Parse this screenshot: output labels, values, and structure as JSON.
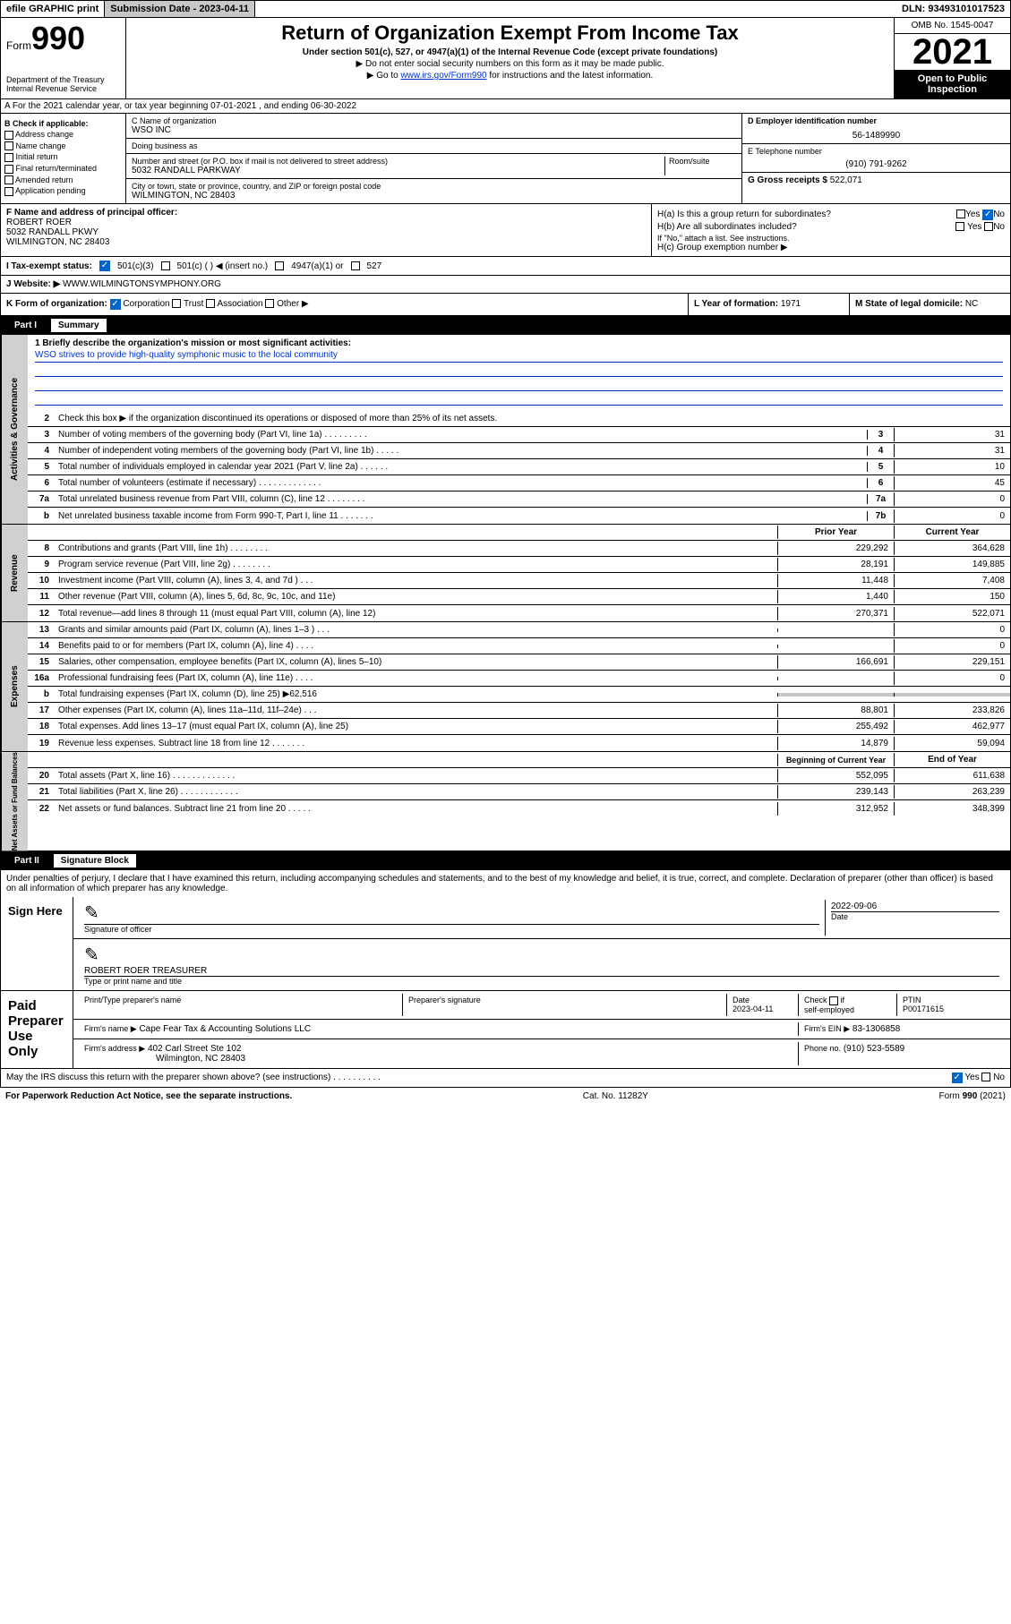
{
  "topbar": {
    "efile": "efile GRAPHIC print",
    "submission_label": "Submission Date - 2023-04-11",
    "dln": "DLN: 93493101017523"
  },
  "header": {
    "form_prefix": "Form",
    "form_num": "990",
    "title": "Return of Organization Exempt From Income Tax",
    "subtitle": "Under section 501(c), 527, or 4947(a)(1) of the Internal Revenue Code (except private foundations)",
    "note1": "▶ Do not enter social security numbers on this form as it may be made public.",
    "note2_prefix": "▶ Go to ",
    "note2_link": "www.irs.gov/Form990",
    "note2_suffix": " for instructions and the latest information.",
    "omb": "OMB No. 1545-0047",
    "year": "2021",
    "open_public": "Open to Public Inspection",
    "dept": "Department of the Treasury\nInternal Revenue Service"
  },
  "row_a": {
    "text": "A For the 2021 calendar year, or tax year beginning 07-01-2021   , and ending 06-30-2022"
  },
  "col_b": {
    "header": "B Check if applicable:",
    "items": [
      "Address change",
      "Name change",
      "Initial return",
      "Final return/terminated",
      "Amended return",
      "Application pending"
    ]
  },
  "col_c": {
    "name_label": "C Name of organization",
    "name": "WSO INC",
    "dba_label": "Doing business as",
    "dba": "",
    "addr_label": "Number and street (or P.O. box if mail is not delivered to street address)",
    "room_label": "Room/suite",
    "addr": "5032 RANDALL PARKWAY",
    "city_label": "City or town, state or province, country, and ZIP or foreign postal code",
    "city": "WILMINGTON, NC  28403"
  },
  "col_de": {
    "ein_label": "D Employer identification number",
    "ein": "56-1489990",
    "phone_label": "E Telephone number",
    "phone": "(910) 791-9262",
    "gross_label": "G Gross receipts $",
    "gross": "522,071"
  },
  "col_f": {
    "label": "F  Name and address of principal officer:",
    "name": "ROBERT ROER",
    "addr1": "5032 RANDALL PKWY",
    "addr2": "WILMINGTON, NC  28403"
  },
  "col_h": {
    "ha_label": "H(a)  Is this a group return for subordinates?",
    "ha_yes": "Yes",
    "ha_no": "No",
    "hb_label": "H(b)  Are all subordinates included?",
    "hb_yes": "Yes",
    "hb_no": "No",
    "hb_note": "If \"No,\" attach a list. See instructions.",
    "hc_label": "H(c)  Group exemption number ▶"
  },
  "row_i": {
    "label": "I   Tax-exempt status:",
    "opt1": "501(c)(3)",
    "opt2": "501(c) (  ) ◀ (insert no.)",
    "opt3": "4947(a)(1) or",
    "opt4": "527"
  },
  "row_j": {
    "label": "J   Website: ▶",
    "value": "WWW.WILMINGTONSYMPHONY.ORG"
  },
  "row_klm": {
    "k_label": "K Form of organization:",
    "k_corp": "Corporation",
    "k_trust": "Trust",
    "k_assoc": "Association",
    "k_other": "Other ▶",
    "l_label": "L Year of formation:",
    "l_value": "1971",
    "m_label": "M State of legal domicile:",
    "m_value": "NC"
  },
  "part1": {
    "num": "Part I",
    "title": "Summary"
  },
  "mission": {
    "label": "1  Briefly describe the organization's mission or most significant activities:",
    "text": "WSO strives to provide high-quality symphonic music to the local community"
  },
  "governance": {
    "side": "Activities & Governance",
    "line2": "Check this box ▶      if the organization discontinued its operations or disposed of more than 25% of its net assets.",
    "rows": [
      {
        "n": "3",
        "t": "Number of voting members of the governing body (Part VI, line 1a)  .    .    .    .    .    .    .    .    .",
        "c": "3",
        "v": "31"
      },
      {
        "n": "4",
        "t": "Number of independent voting members of the governing body (Part VI, line 1b)   .    .    .    .    .",
        "c": "4",
        "v": "31"
      },
      {
        "n": "5",
        "t": "Total number of individuals employed in calendar year 2021 (Part V, line 2a)  .    .    .    .    .    .",
        "c": "5",
        "v": "10"
      },
      {
        "n": "6",
        "t": "Total number of volunteers (estimate if necessary)   .    .    .    .    .    .    .    .    .    .    .    .    .",
        "c": "6",
        "v": "45"
      },
      {
        "n": "7a",
        "t": "Total unrelated business revenue from Part VIII, column (C), line 12   .    .    .    .    .    .    .    .",
        "c": "7a",
        "v": "0"
      },
      {
        "n": "b",
        "t": "Net unrelated business taxable income from Form 990-T, Part I, line 11   .    .    .    .    .    .    .",
        "c": "7b",
        "v": "0"
      }
    ]
  },
  "revenue": {
    "side": "Revenue",
    "header_prior": "Prior Year",
    "header_current": "Current Year",
    "rows": [
      {
        "n": "8",
        "t": "Contributions and grants (Part VIII, line 1h)   .    .    .    .    .    .    .    .",
        "p": "229,292",
        "c": "364,628"
      },
      {
        "n": "9",
        "t": "Program service revenue (Part VIII, line 2g)   .    .    .    .    .    .    .    .",
        "p": "28,191",
        "c": "149,885"
      },
      {
        "n": "10",
        "t": "Investment income (Part VIII, column (A), lines 3, 4, and 7d )   .    .    .",
        "p": "11,448",
        "c": "7,408"
      },
      {
        "n": "11",
        "t": "Other revenue (Part VIII, column (A), lines 5, 6d, 8c, 9c, 10c, and 11e)",
        "p": "1,440",
        "c": "150"
      },
      {
        "n": "12",
        "t": "Total revenue—add lines 8 through 11 (must equal Part VIII, column (A), line 12)",
        "p": "270,371",
        "c": "522,071"
      }
    ]
  },
  "expenses": {
    "side": "Expenses",
    "rows": [
      {
        "n": "13",
        "t": "Grants and similar amounts paid (Part IX, column (A), lines 1–3 )   .    .    .",
        "p": "",
        "c": "0"
      },
      {
        "n": "14",
        "t": "Benefits paid to or for members (Part IX, column (A), line 4)   .    .    .    .",
        "p": "",
        "c": "0"
      },
      {
        "n": "15",
        "t": "Salaries, other compensation, employee benefits (Part IX, column (A), lines 5–10)",
        "p": "166,691",
        "c": "229,151"
      },
      {
        "n": "16a",
        "t": "Professional fundraising fees (Part IX, column (A), line 11e)   .    .    .    .",
        "p": "",
        "c": "0"
      },
      {
        "n": "b",
        "t": "Total fundraising expenses (Part IX, column (D), line 25) ▶62,516",
        "p": "gray",
        "c": "gray"
      },
      {
        "n": "17",
        "t": "Other expenses (Part IX, column (A), lines 11a–11d, 11f–24e)   .    .    .",
        "p": "88,801",
        "c": "233,826"
      },
      {
        "n": "18",
        "t": "Total expenses. Add lines 13–17 (must equal Part IX, column (A), line 25)",
        "p": "255,492",
        "c": "462,977"
      },
      {
        "n": "19",
        "t": "Revenue less expenses. Subtract line 18 from line 12 .    .    .    .    .    .    .",
        "p": "14,879",
        "c": "59,094"
      }
    ]
  },
  "netassets": {
    "side": "Net Assets or Fund Balances",
    "header_begin": "Beginning of Current Year",
    "header_end": "End of Year",
    "rows": [
      {
        "n": "20",
        "t": "Total assets (Part X, line 16)   .    .    .    .    .    .    .    .    .    .    .    .    .",
        "p": "552,095",
        "c": "611,638"
      },
      {
        "n": "21",
        "t": "Total liabilities (Part X, line 26)   .    .    .    .    .    .    .    .    .    .    .    .",
        "p": "239,143",
        "c": "263,239"
      },
      {
        "n": "22",
        "t": "Net assets or fund balances. Subtract line 21 from line 20 .    .    .    .    .",
        "p": "312,952",
        "c": "348,399"
      }
    ]
  },
  "part2": {
    "num": "Part II",
    "title": "Signature Block",
    "penalty": "Under penalties of perjury, I declare that I have examined this return, including accompanying schedules and statements, and to the best of my knowledge and belief, it is true, correct, and complete. Declaration of preparer (other than officer) is based on all information of which preparer has any knowledge."
  },
  "sign": {
    "label": "Sign Here",
    "sig_label": "Signature of officer",
    "date": "2022-09-06",
    "date_label": "Date",
    "name": "ROBERT ROER  TREASURER",
    "name_label": "Type or print name and title"
  },
  "preparer": {
    "label": "Paid Preparer Use Only",
    "name_label": "Print/Type preparer's name",
    "sig_label": "Preparer's signature",
    "date_label": "Date",
    "date": "2023-04-11",
    "check_label": "Check        if self-employed",
    "ptin_label": "PTIN",
    "ptin": "P00171615",
    "firm_name_label": "Firm's name    ▶",
    "firm_name": "Cape Fear Tax & Accounting Solutions LLC",
    "firm_ein_label": "Firm's EIN ▶",
    "firm_ein": "83-1306858",
    "firm_addr_label": "Firm's address ▶",
    "firm_addr1": "402 Carl Street Ste 102",
    "firm_addr2": "Wilmington, NC  28403",
    "phone_label": "Phone no.",
    "phone": "(910) 523-5589"
  },
  "footer": {
    "discuss": "May the IRS discuss this return with the preparer shown above? (see instructions)   .    .    .    .    .    .    .    .    .    .",
    "yes": "Yes",
    "no": "No",
    "paperwork": "For Paperwork Reduction Act Notice, see the separate instructions.",
    "cat": "Cat. No. 11282Y",
    "form": "Form 990 (2021)"
  }
}
